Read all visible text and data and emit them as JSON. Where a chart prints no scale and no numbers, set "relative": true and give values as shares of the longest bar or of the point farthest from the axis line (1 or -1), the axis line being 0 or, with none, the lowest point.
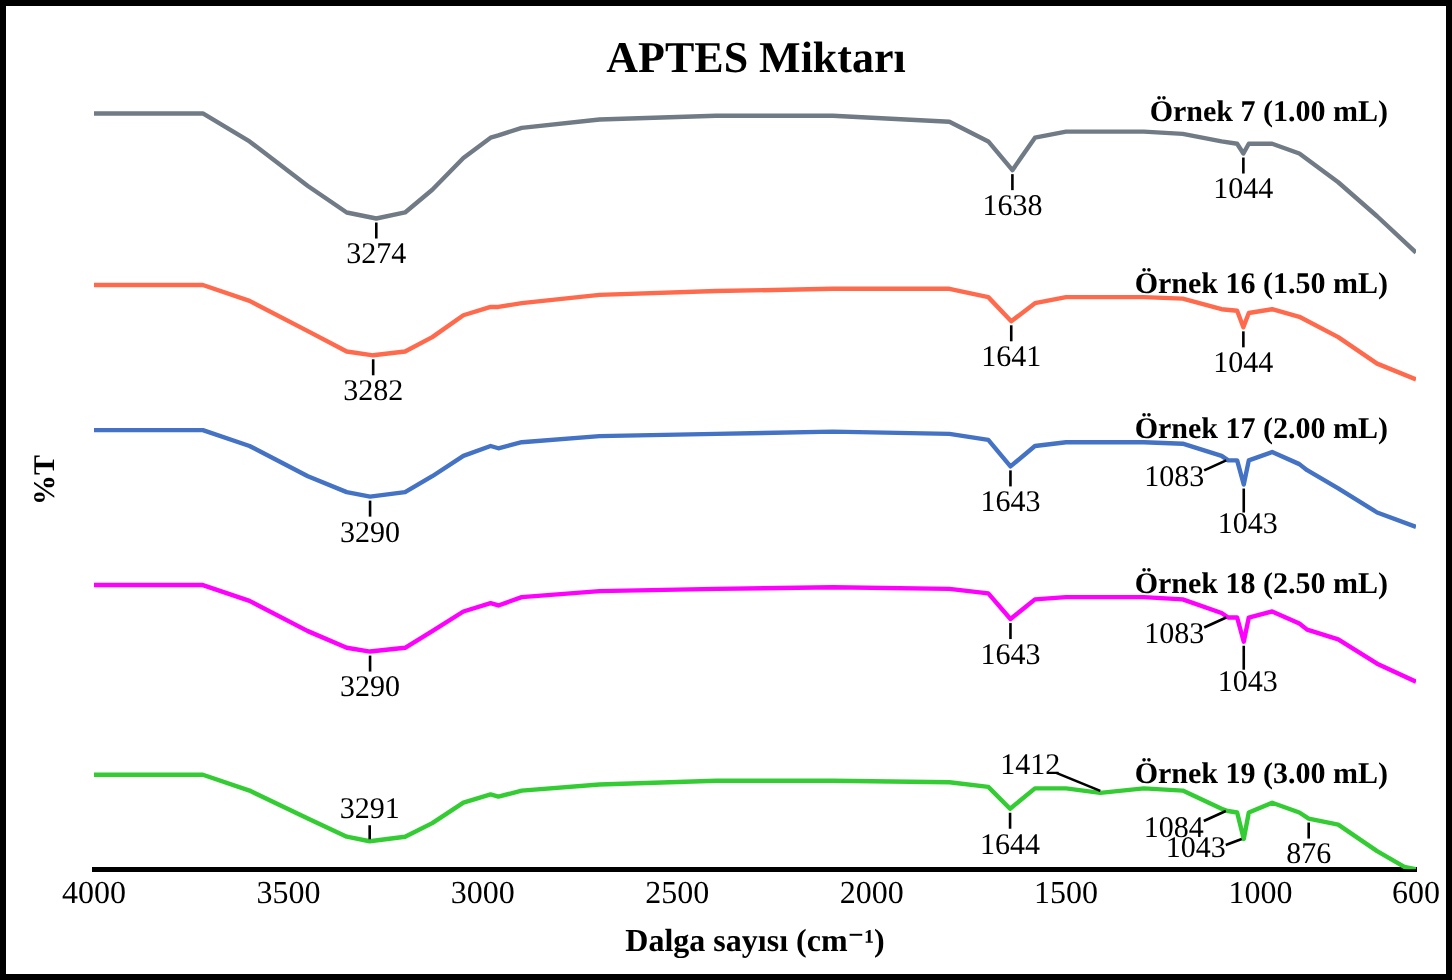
{
  "chart_data": {
    "type": "line",
    "title": "APTES Miktarı",
    "xlabel": "Dalga sayısı (cm⁻¹)",
    "ylabel": "%T",
    "relative": true,
    "xlim": [
      4000,
      600
    ],
    "xticks": [
      4000,
      3500,
      3000,
      2500,
      2000,
      1500,
      1000,
      600
    ],
    "legend": false,
    "grid": false,
    "marker": "none",
    "line_style": "solid",
    "series": [
      {
        "name": "Örnek 7 (1.00 mL)",
        "color": "#707b86",
        "x": [
          4000,
          3720,
          3600,
          3450,
          3350,
          3274,
          3200,
          3130,
          3050,
          2980,
          2960,
          2900,
          2700,
          2400,
          2100,
          1800,
          1700,
          1638,
          1580,
          1500,
          1300,
          1200,
          1100,
          1060,
          1044,
          1030,
          970,
          900,
          800,
          700,
          600
        ],
        "values": [
          1.0,
          1.0,
          0.963,
          0.904,
          0.869,
          0.861,
          0.869,
          0.899,
          0.941,
          0.968,
          0.971,
          0.981,
          0.992,
          0.997,
          0.997,
          0.989,
          0.963,
          0.925,
          0.968,
          0.976,
          0.976,
          0.973,
          0.963,
          0.96,
          0.947,
          0.96,
          0.96,
          0.947,
          0.909,
          0.864,
          0.816
        ]
      },
      {
        "name": "Örnek 16 (1.50 mL)",
        "color": "#ff6a4d",
        "x": [
          4000,
          3720,
          3600,
          3450,
          3350,
          3282,
          3200,
          3130,
          3050,
          2980,
          2960,
          2900,
          2700,
          2400,
          2100,
          1800,
          1700,
          1641,
          1580,
          1500,
          1300,
          1200,
          1100,
          1060,
          1044,
          1030,
          970,
          900,
          800,
          700,
          600
        ],
        "values": [
          0.773,
          0.773,
          0.752,
          0.712,
          0.685,
          0.68,
          0.685,
          0.704,
          0.733,
          0.744,
          0.744,
          0.749,
          0.76,
          0.765,
          0.768,
          0.768,
          0.757,
          0.725,
          0.749,
          0.757,
          0.757,
          0.755,
          0.741,
          0.739,
          0.717,
          0.736,
          0.741,
          0.731,
          0.704,
          0.669,
          0.648
        ]
      },
      {
        "name": "Örnek 17 (2.00 mL)",
        "color": "#4472c4",
        "x": [
          4000,
          3720,
          3600,
          3450,
          3350,
          3290,
          3200,
          3130,
          3050,
          2980,
          2960,
          2900,
          2700,
          2400,
          2100,
          1800,
          1700,
          1643,
          1580,
          1500,
          1300,
          1200,
          1100,
          1083,
          1060,
          1043,
          1030,
          970,
          900,
          880,
          800,
          700,
          600
        ],
        "values": [
          0.581,
          0.581,
          0.56,
          0.52,
          0.499,
          0.493,
          0.499,
          0.52,
          0.547,
          0.56,
          0.557,
          0.565,
          0.573,
          0.576,
          0.579,
          0.576,
          0.568,
          0.533,
          0.56,
          0.565,
          0.565,
          0.563,
          0.547,
          0.541,
          0.541,
          0.509,
          0.541,
          0.552,
          0.536,
          0.528,
          0.504,
          0.472,
          0.453
        ]
      },
      {
        "name": "Örnek 18 (2.50 mL)",
        "color": "#ff00ff",
        "x": [
          4000,
          3720,
          3600,
          3450,
          3350,
          3290,
          3200,
          3130,
          3050,
          2980,
          2960,
          2900,
          2700,
          2400,
          2100,
          1800,
          1700,
          1643,
          1580,
          1500,
          1300,
          1200,
          1100,
          1083,
          1060,
          1043,
          1030,
          970,
          900,
          880,
          800,
          700,
          600
        ],
        "values": [
          0.376,
          0.376,
          0.355,
          0.315,
          0.293,
          0.288,
          0.293,
          0.315,
          0.341,
          0.352,
          0.349,
          0.36,
          0.368,
          0.371,
          0.373,
          0.371,
          0.365,
          0.331,
          0.357,
          0.36,
          0.36,
          0.357,
          0.339,
          0.333,
          0.333,
          0.301,
          0.333,
          0.341,
          0.325,
          0.317,
          0.304,
          0.272,
          0.248
        ]
      },
      {
        "name": "Örnek 19 (3.00 mL)",
        "color": "#33cc33",
        "x": [
          4000,
          3720,
          3600,
          3450,
          3350,
          3291,
          3200,
          3130,
          3050,
          2980,
          2960,
          2900,
          2700,
          2400,
          2100,
          1800,
          1700,
          1644,
          1580,
          1500,
          1412,
          1300,
          1200,
          1100,
          1084,
          1060,
          1043,
          1030,
          970,
          900,
          876,
          800,
          700,
          630,
          600
        ],
        "values": [
          0.125,
          0.125,
          0.104,
          0.067,
          0.043,
          0.037,
          0.043,
          0.061,
          0.088,
          0.099,
          0.096,
          0.104,
          0.112,
          0.117,
          0.117,
          0.115,
          0.109,
          0.08,
          0.107,
          0.107,
          0.101,
          0.107,
          0.104,
          0.08,
          0.077,
          0.075,
          0.04,
          0.075,
          0.088,
          0.075,
          0.067,
          0.059,
          0.024,
          0.003,
          0
        ]
      }
    ],
    "annotations": [
      {
        "text": "3274",
        "x": 3274,
        "y": 0.861
      },
      {
        "text": "1638",
        "x": 1638,
        "y": 0.925
      },
      {
        "text": "1044",
        "x": 1044,
        "y": 0.947
      },
      {
        "text": "3282",
        "x": 3282,
        "y": 0.68
      },
      {
        "text": "1641",
        "x": 1641,
        "y": 0.725
      },
      {
        "text": "1044",
        "x": 1044,
        "y": 0.717
      },
      {
        "text": "3290",
        "x": 3290,
        "y": 0.493
      },
      {
        "text": "1643",
        "x": 1643,
        "y": 0.533
      },
      {
        "text": "1083",
        "x": 1083,
        "y": 0.541
      },
      {
        "text": "1043",
        "x": 1043,
        "y": 0.509
      },
      {
        "text": "3290",
        "x": 3290,
        "y": 0.288
      },
      {
        "text": "1643",
        "x": 1643,
        "y": 0.331
      },
      {
        "text": "1083",
        "x": 1083,
        "y": 0.333
      },
      {
        "text": "1043",
        "x": 1043,
        "y": 0.301
      },
      {
        "text": "3291",
        "x": 3291,
        "y": 0.037
      },
      {
        "text": "1412",
        "x": 1412,
        "y": 0.101
      },
      {
        "text": "1644",
        "x": 1644,
        "y": 0.08
      },
      {
        "text": "1084",
        "x": 1084,
        "y": 0.077
      },
      {
        "text": "1043",
        "x": 1043,
        "y": 0.04
      },
      {
        "text": "876",
        "x": 876,
        "y": 0.067
      }
    ]
  }
}
